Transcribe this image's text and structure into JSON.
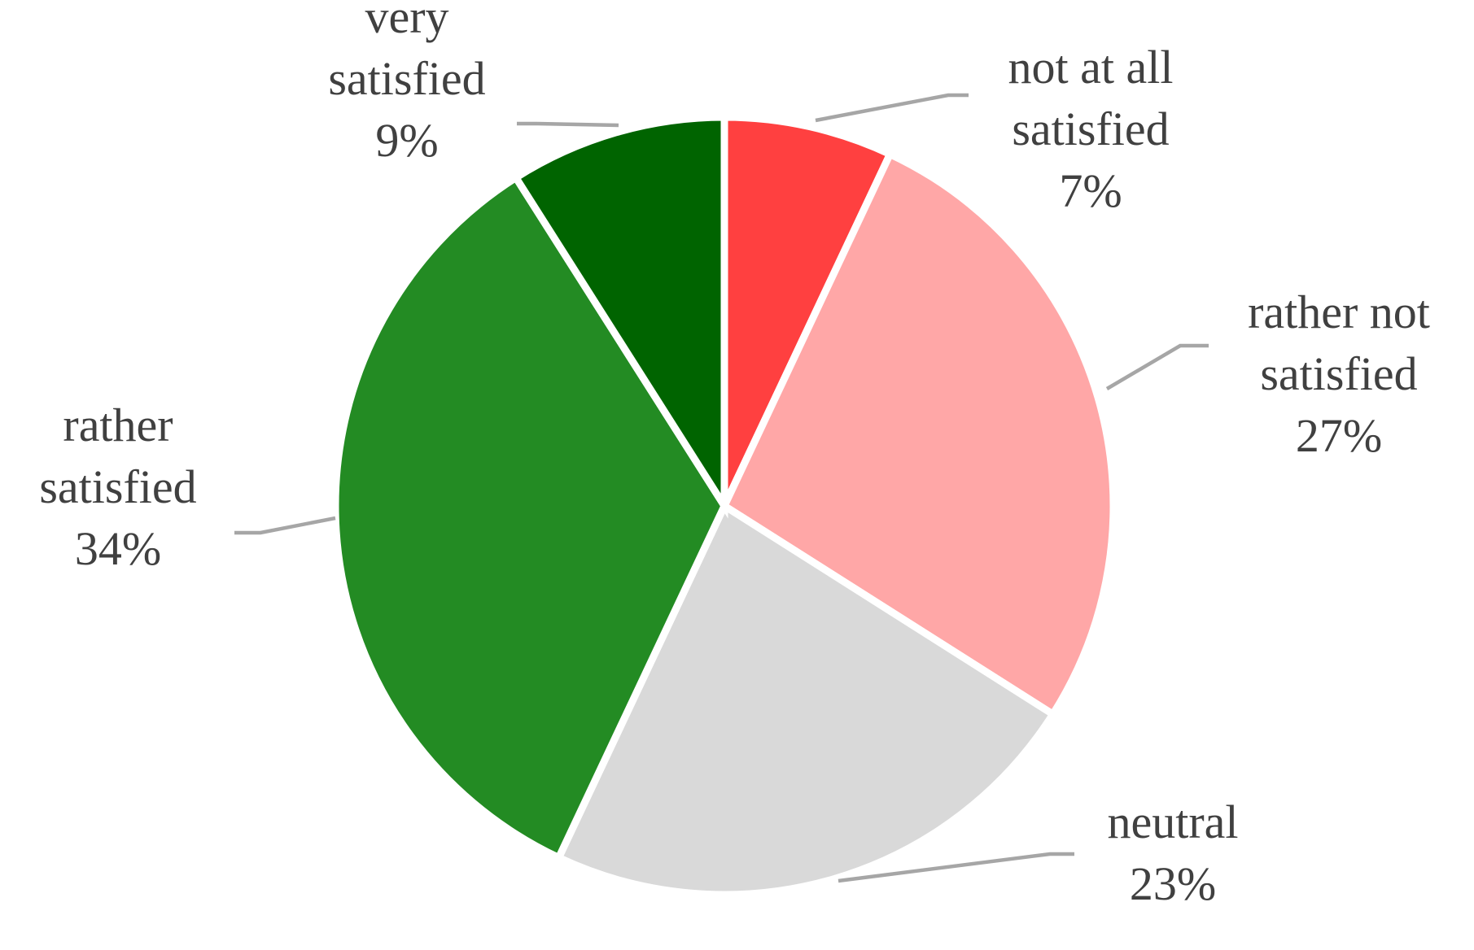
{
  "chart_data": {
    "type": "pie",
    "title": "",
    "start_angle_deg": 0,
    "direction": "clockwise",
    "slices": [
      {
        "name": "not at all satisfied",
        "label_lines": [
          "not at all",
          "satisfied"
        ],
        "percent_label": "7%",
        "value": 7,
        "color": "#ff4040"
      },
      {
        "name": "rather not satisfied",
        "label_lines": [
          "rather not",
          "satisfied"
        ],
        "percent_label": "27%",
        "value": 27,
        "color": "#ffa7a7"
      },
      {
        "name": "neutral",
        "label_lines": [
          "neutral"
        ],
        "percent_label": "23%",
        "value": 23,
        "color": "#d9d9d9"
      },
      {
        "name": "rather satisfied",
        "label_lines": [
          "rather",
          "satisfied"
        ],
        "percent_label": "34%",
        "value": 34,
        "color": "#238b23"
      },
      {
        "name": "very satisfied",
        "label_lines": [
          "very",
          "satisfied"
        ],
        "percent_label": "9%",
        "value": 9,
        "color": "#006400"
      }
    ],
    "legend": "none",
    "data_labels": "outside with leader lines",
    "leader_line_color": "#a6a6a6",
    "label_text_color": "#404040"
  }
}
